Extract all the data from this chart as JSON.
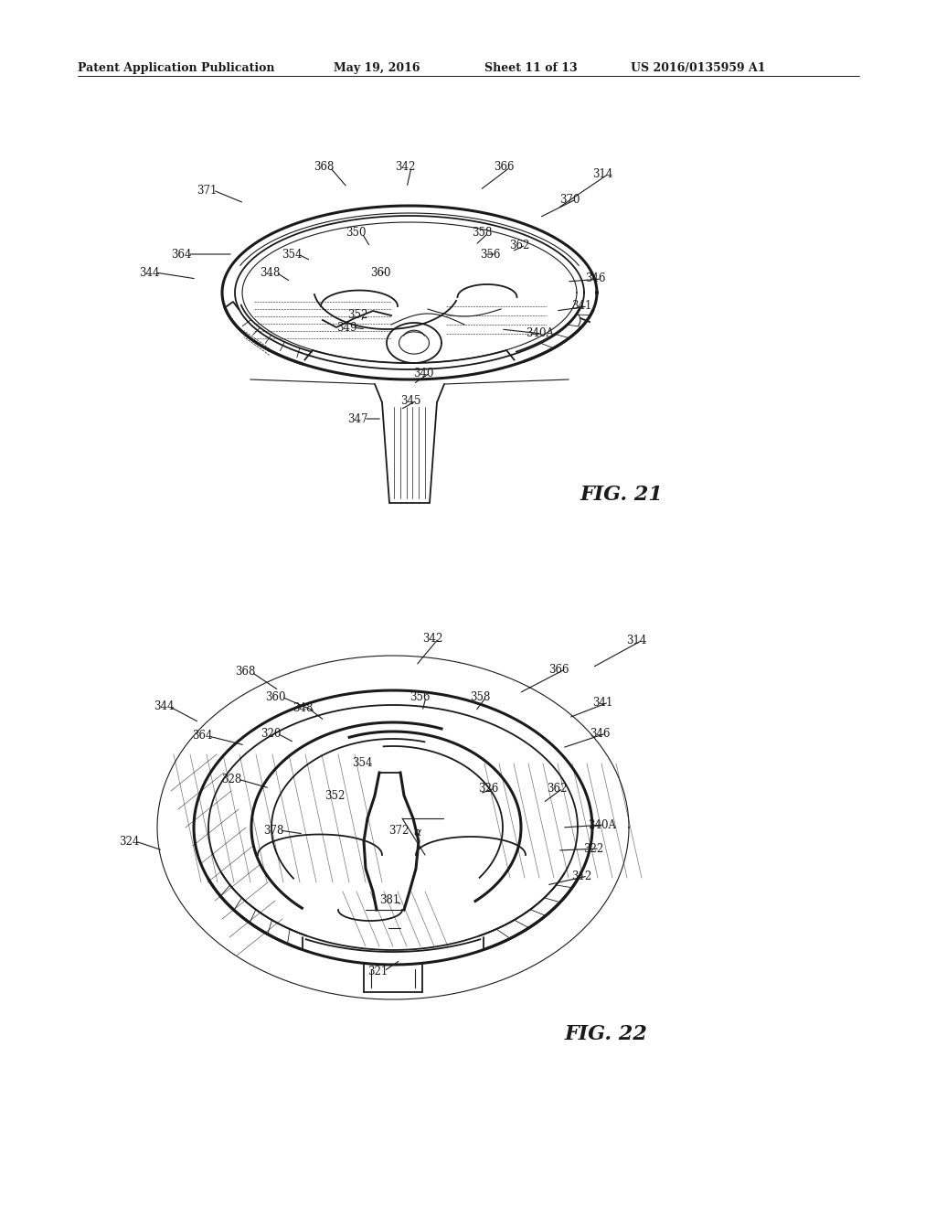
{
  "background_color": "#ffffff",
  "header_text": "Patent Application Publication",
  "header_date": "May 19, 2016",
  "header_sheet": "Sheet 11 of 13",
  "header_patent": "US 2016/0135959 A1",
  "header_fontsize": 9,
  "fig21_label": "FIG. 21",
  "fig22_label": "FIG. 22",
  "fig_label_fontsize": 16,
  "label_fontsize": 8.5,
  "line_color": "#1a1a1a"
}
